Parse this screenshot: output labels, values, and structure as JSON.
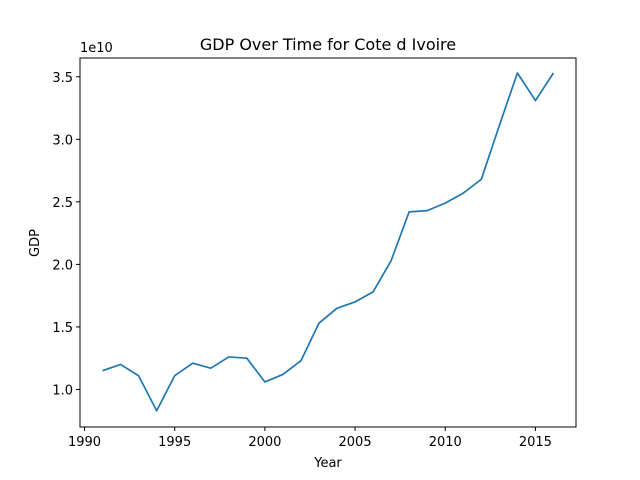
{
  "chart_data": {
    "type": "line",
    "title": "GDP Over Time for Cote d Ivoire",
    "xlabel": "Year",
    "ylabel": "GDP",
    "y_offset_label": "1e10",
    "xlim": [
      1989.75,
      1991.25
    ],
    "ylim": [
      0.7,
      3.65
    ],
    "x_ticks": [
      1990,
      1995,
      2000,
      2005,
      2010,
      2015
    ],
    "y_ticks": [
      1.0,
      1.5,
      2.0,
      2.5,
      3.0,
      3.5
    ],
    "y_tick_labels": [
      "1.0",
      "1.5",
      "2.0",
      "2.5",
      "3.0",
      "3.5"
    ],
    "grid": false,
    "color": "#1f77b4",
    "series": [
      {
        "x": [
          1991,
          1992,
          1993,
          1994,
          1995,
          1996,
          1997,
          1998,
          1999,
          2000,
          2001,
          2002,
          2003,
          2004,
          2005,
          2006,
          2007,
          2008,
          2009,
          2010,
          2011,
          2012,
          2013,
          2014,
          2015,
          2016
        ],
        "values": [
          1.15,
          1.2,
          1.11,
          0.83,
          1.11,
          1.21,
          1.17,
          1.26,
          1.25,
          1.06,
          1.12,
          1.23,
          1.53,
          1.65,
          1.7,
          1.78,
          2.03,
          2.42,
          2.43,
          2.49,
          2.57,
          2.68,
          3.11,
          3.53,
          3.31,
          3.53
        ]
      }
    ]
  }
}
